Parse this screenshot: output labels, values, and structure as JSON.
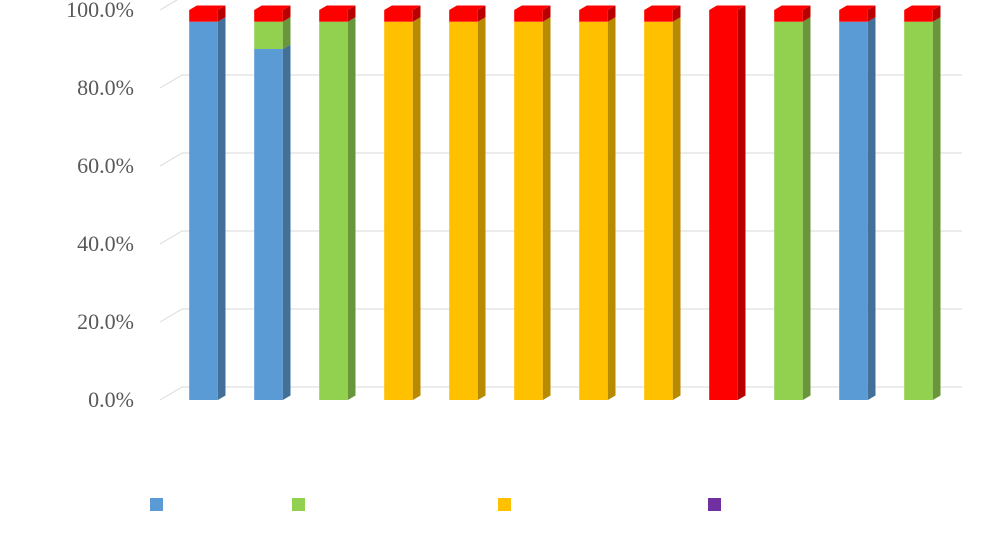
{
  "chart_data": {
    "type": "bar",
    "stacked": "percent",
    "categories": [
      "",
      "",
      "",
      "",
      "",
      "",
      "",
      "",
      "",
      "",
      "",
      ""
    ],
    "y_ticks": [
      "0.0%",
      "20.0%",
      "40.0%",
      "60.0%",
      "80.0%",
      "100.0%"
    ],
    "ylim": [
      0,
      100
    ],
    "grid": true,
    "legend_position": "bottom",
    "series": [
      {
        "name": "",
        "color": "#5B9BD5",
        "values": [
          97,
          90,
          0,
          0,
          0,
          0,
          0,
          0,
          0,
          0,
          97,
          0
        ]
      },
      {
        "name": "",
        "color": "#92D050",
        "values": [
          0,
          7,
          97,
          0,
          0,
          0,
          0,
          0,
          0,
          97,
          0,
          97
        ]
      },
      {
        "name": "",
        "color": "#FFC000",
        "values": [
          0,
          0,
          0,
          97,
          97,
          97,
          97,
          97,
          0,
          0,
          0,
          0
        ]
      },
      {
        "name": "",
        "color": "#FF0000",
        "values": [
          3,
          3,
          3,
          3,
          3,
          3,
          3,
          3,
          100,
          3,
          3,
          3
        ]
      }
    ],
    "legend": [
      {
        "label": "",
        "color": "#5B9BD5"
      },
      {
        "label": "",
        "color": "#92D050"
      },
      {
        "label": "",
        "color": "#FFC000"
      },
      {
        "label": "",
        "color": "#7030A0"
      }
    ]
  }
}
